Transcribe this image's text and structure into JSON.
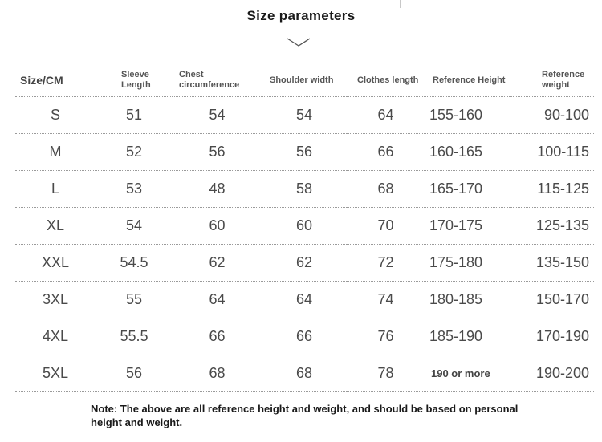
{
  "title": "Size parameters",
  "headers": [
    "Size/CM",
    "Sleeve Length",
    "Chest circumference",
    "Shoulder width",
    "Clothes length",
    "Reference Height",
    "Reference weight"
  ],
  "rows": [
    {
      "size": "S",
      "sleeve": "51",
      "chest": "54",
      "shoulder": "54",
      "length": "64",
      "height": "155-160",
      "weight": "90-100"
    },
    {
      "size": "M",
      "sleeve": "52",
      "chest": "56",
      "shoulder": "56",
      "length": "66",
      "height": "160-165",
      "weight": "100-115"
    },
    {
      "size": "L",
      "sleeve": "53",
      "chest": "48",
      "shoulder": "58",
      "length": "68",
      "height": "165-170",
      "weight": "115-125"
    },
    {
      "size": "XL",
      "sleeve": "54",
      "chest": "60",
      "shoulder": "60",
      "length": "70",
      "height": "170-175",
      "weight": "125-135"
    },
    {
      "size": "XXL",
      "sleeve": "54.5",
      "chest": "62",
      "shoulder": "62",
      "length": "72",
      "height": "175-180",
      "weight": "135-150"
    },
    {
      "size": "3XL",
      "sleeve": "55",
      "chest": "64",
      "shoulder": "64",
      "length": "74",
      "height": "180-185",
      "weight": "150-170"
    },
    {
      "size": "4XL",
      "sleeve": "55.5",
      "chest": "66",
      "shoulder": "66",
      "length": "76",
      "height": "185-190",
      "weight": "170-190"
    },
    {
      "size": "5XL",
      "sleeve": "56",
      "chest": "68",
      "shoulder": "68",
      "length": "78",
      "height": "190 or more",
      "weight": "190-200"
    }
  ],
  "note": "Note: The above are all reference height and weight, and should be based on personal height and weight.",
  "colors": {
    "text": "#4a4a4a",
    "title": "#1a1a1a",
    "divider": "#9a9a9a"
  }
}
